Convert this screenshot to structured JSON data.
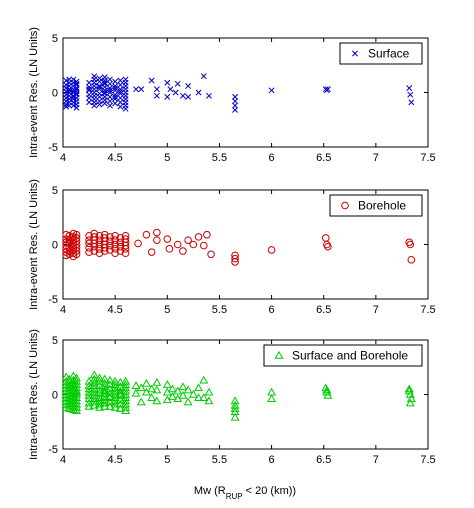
{
  "figure_xlabel": {
    "main": "Mw (R",
    "sub": "RUP",
    "rest": " < 20 (km))"
  },
  "chart_data": [
    {
      "type": "scatter",
      "legend": "Surface",
      "legend_position": "top-right",
      "ylabel": "Intra-event Res. (LN Units)",
      "marker": "x",
      "color": "#0000cc",
      "xlim": [
        4,
        7.5
      ],
      "ylim": [
        -5,
        5
      ],
      "xticks": [
        "4",
        "4.5",
        "5",
        "5.5",
        "6",
        "6.5",
        "7",
        "7.5"
      ],
      "yticks": [
        "5",
        "0",
        "-5"
      ],
      "x": [
        4.03,
        4.03,
        4.03,
        4.03,
        4.03,
        4.03,
        4.03,
        4.03,
        4.03,
        4.06,
        4.06,
        4.06,
        4.06,
        4.06,
        4.06,
        4.06,
        4.06,
        4.06,
        4.06,
        4.1,
        4.1,
        4.1,
        4.1,
        4.1,
        4.1,
        4.1,
        4.1,
        4.1,
        4.1,
        4.1,
        4.13,
        4.13,
        4.13,
        4.13,
        4.13,
        4.13,
        4.13,
        4.13,
        4.13,
        4.13,
        4.13,
        4.13,
        4.25,
        4.25,
        4.25,
        4.25,
        4.25,
        4.25,
        4.25,
        4.3,
        4.3,
        4.3,
        4.3,
        4.3,
        4.3,
        4.3,
        4.3,
        4.3,
        4.3,
        4.35,
        4.35,
        4.35,
        4.35,
        4.35,
        4.35,
        4.35,
        4.35,
        4.35,
        4.4,
        4.4,
        4.4,
        4.4,
        4.4,
        4.4,
        4.4,
        4.4,
        4.4,
        4.4,
        4.4,
        4.45,
        4.45,
        4.45,
        4.45,
        4.45,
        4.45,
        4.45,
        4.45,
        4.5,
        4.5,
        4.5,
        4.5,
        4.5,
        4.5,
        4.5,
        4.5,
        4.55,
        4.55,
        4.55,
        4.55,
        4.55,
        4.55,
        4.55,
        4.55,
        4.6,
        4.6,
        4.6,
        4.6,
        4.6,
        4.6,
        4.6,
        4.6,
        4.6,
        4.6,
        4.7,
        4.75,
        4.85,
        4.9,
        4.9,
        5.0,
        5.0,
        5.03,
        5.08,
        5.1,
        5.15,
        5.2,
        5.2,
        5.3,
        5.35,
        5.4,
        5.65,
        5.65,
        5.65,
        5.65,
        6.0,
        6.52,
        6.53,
        6.54,
        7.32,
        7.33,
        7.34
      ],
      "y": [
        1.1,
        0.7,
        0.4,
        0.1,
        -0.2,
        -0.5,
        -0.8,
        -1.1,
        -1.3,
        0.9,
        0.6,
        0.3,
        0.0,
        -0.3,
        -0.6,
        -0.9,
        1.2,
        -1.2,
        0.2,
        1.2,
        0.9,
        0.6,
        0.3,
        0.0,
        -0.3,
        -0.6,
        -0.9,
        -1.2,
        0.1,
        -0.4,
        1.0,
        0.7,
        0.4,
        0.1,
        -0.2,
        -0.5,
        -0.8,
        -1.1,
        -1.4,
        0.8,
        -0.1,
        0.3,
        0.9,
        0.5,
        0.2,
        -0.2,
        -0.5,
        -0.9,
        0.3,
        1.5,
        1.2,
        0.9,
        0.6,
        0.3,
        0.0,
        -0.3,
        -0.6,
        -0.9,
        -1.2,
        1.3,
        1.0,
        0.6,
        0.3,
        -0.1,
        -0.4,
        -0.8,
        -1.1,
        0.5,
        1.4,
        1.1,
        0.8,
        0.5,
        0.2,
        -0.1,
        -0.4,
        -0.7,
        -1.0,
        0.0,
        0.9,
        1.2,
        0.8,
        0.4,
        0.0,
        -0.4,
        -0.8,
        -1.2,
        0.2,
        1.0,
        0.6,
        0.2,
        -0.2,
        -0.6,
        -1.0,
        0.4,
        -0.4,
        1.1,
        0.7,
        0.3,
        -0.1,
        -0.5,
        -0.9,
        -1.3,
        0.1,
        1.2,
        0.9,
        0.6,
        0.3,
        0.0,
        -0.3,
        -0.6,
        -0.9,
        -1.2,
        -1.5,
        0.3,
        0.3,
        1.1,
        0.3,
        -0.3,
        0.9,
        -0.4,
        0.3,
        0.0,
        0.8,
        -0.3,
        0.6,
        -0.4,
        0.0,
        1.5,
        -0.3,
        -0.4,
        -0.8,
        -1.2,
        -1.6,
        0.2,
        0.3,
        0.2,
        0.3,
        0.4,
        -0.2,
        -0.9
      ]
    },
    {
      "type": "scatter",
      "legend": "Borehole",
      "legend_position": "top-right",
      "ylabel": "Intra-event Res. (LN Units)",
      "marker": "circle",
      "color": "#cc0000",
      "xlim": [
        4,
        7.5
      ],
      "ylim": [
        -5,
        5
      ],
      "xticks": [
        "4",
        "4.5",
        "5",
        "5.5",
        "6",
        "6.5",
        "7",
        "7.5"
      ],
      "yticks": [
        "5",
        "0",
        "-5"
      ],
      "x": [
        4.03,
        4.03,
        4.03,
        4.03,
        4.03,
        4.03,
        4.03,
        4.06,
        4.06,
        4.06,
        4.06,
        4.06,
        4.06,
        4.06,
        4.1,
        4.1,
        4.1,
        4.1,
        4.1,
        4.1,
        4.1,
        4.1,
        4.13,
        4.13,
        4.13,
        4.13,
        4.13,
        4.13,
        4.13,
        4.25,
        4.25,
        4.25,
        4.25,
        4.25,
        4.3,
        4.3,
        4.3,
        4.3,
        4.3,
        4.3,
        4.35,
        4.35,
        4.35,
        4.35,
        4.35,
        4.4,
        4.4,
        4.4,
        4.4,
        4.4,
        4.4,
        4.45,
        4.45,
        4.45,
        4.45,
        4.5,
        4.5,
        4.5,
        4.5,
        4.5,
        4.55,
        4.55,
        4.55,
        4.55,
        4.6,
        4.6,
        4.6,
        4.6,
        4.6,
        4.6,
        4.72,
        4.8,
        4.85,
        4.9,
        4.9,
        5.0,
        5.02,
        5.1,
        5.15,
        5.2,
        5.25,
        5.3,
        5.35,
        5.38,
        5.42,
        5.65,
        5.65,
        5.65,
        6.0,
        6.52,
        6.53,
        6.54,
        7.32,
        7.33,
        7.34
      ],
      "y": [
        0.9,
        0.5,
        0.2,
        -0.1,
        -0.4,
        -0.7,
        -1.0,
        0.8,
        0.4,
        0.1,
        -0.3,
        -0.6,
        -0.9,
        0.2,
        1.0,
        0.7,
        0.4,
        0.1,
        -0.2,
        -0.5,
        -0.8,
        -1.1,
        0.9,
        0.6,
        0.3,
        0.0,
        -0.3,
        -0.6,
        -0.9,
        0.8,
        0.4,
        0.1,
        -0.3,
        -0.7,
        1.0,
        0.7,
        0.4,
        0.1,
        -0.2,
        -0.6,
        0.8,
        0.4,
        0.0,
        -0.4,
        -0.8,
        0.9,
        0.6,
        0.3,
        0.0,
        -0.3,
        -0.6,
        0.7,
        0.3,
        -0.1,
        -0.5,
        0.8,
        0.4,
        0.0,
        -0.4,
        -0.8,
        0.6,
        0.2,
        -0.2,
        -0.6,
        0.8,
        0.5,
        0.2,
        -0.1,
        -0.4,
        -0.8,
        0.1,
        0.9,
        -0.7,
        1.1,
        0.4,
        0.5,
        -0.4,
        0.0,
        -0.6,
        0.4,
        0.0,
        0.7,
        -0.1,
        0.9,
        -0.9,
        -1.0,
        -1.3,
        -1.6,
        -0.5,
        0.6,
        0.0,
        -0.2,
        0.2,
        0.0,
        -1.4
      ]
    },
    {
      "type": "scatter",
      "legend": "Surface and Borehole",
      "legend_position": "top-right",
      "ylabel": "Intra-event Res. (LN Units)",
      "marker": "triangle",
      "color": "#00cc00",
      "xlim": [
        4,
        7.5
      ],
      "ylim": [
        -5,
        5
      ],
      "xticks": [
        "4",
        "4.5",
        "5",
        "5.5",
        "6",
        "6.5",
        "7",
        "7.5"
      ],
      "yticks": [
        "5",
        "0",
        "-5"
      ],
      "x": [
        4.03,
        4.03,
        4.03,
        4.03,
        4.03,
        4.03,
        4.03,
        4.03,
        4.03,
        4.03,
        4.06,
        4.06,
        4.06,
        4.06,
        4.06,
        4.06,
        4.06,
        4.06,
        4.06,
        4.06,
        4.1,
        4.1,
        4.1,
        4.1,
        4.1,
        4.1,
        4.1,
        4.1,
        4.1,
        4.1,
        4.1,
        4.13,
        4.13,
        4.13,
        4.13,
        4.13,
        4.13,
        4.13,
        4.13,
        4.13,
        4.13,
        4.13,
        4.13,
        4.25,
        4.25,
        4.25,
        4.25,
        4.25,
        4.25,
        4.25,
        4.25,
        4.3,
        4.3,
        4.3,
        4.3,
        4.3,
        4.3,
        4.3,
        4.3,
        4.3,
        4.3,
        4.35,
        4.35,
        4.35,
        4.35,
        4.35,
        4.35,
        4.35,
        4.35,
        4.35,
        4.4,
        4.4,
        4.4,
        4.4,
        4.4,
        4.4,
        4.4,
        4.4,
        4.4,
        4.4,
        4.45,
        4.45,
        4.45,
        4.45,
        4.45,
        4.45,
        4.45,
        4.45,
        4.5,
        4.5,
        4.5,
        4.5,
        4.5,
        4.5,
        4.5,
        4.5,
        4.5,
        4.55,
        4.55,
        4.55,
        4.55,
        4.55,
        4.55,
        4.55,
        4.55,
        4.6,
        4.6,
        4.6,
        4.6,
        4.6,
        4.6,
        4.6,
        4.6,
        4.6,
        4.6,
        4.7,
        4.7,
        4.75,
        4.75,
        4.8,
        4.8,
        4.85,
        4.85,
        4.9,
        4.9,
        4.9,
        5.0,
        5.0,
        5.0,
        5.05,
        5.05,
        5.1,
        5.1,
        5.15,
        5.15,
        5.2,
        5.2,
        5.25,
        5.3,
        5.3,
        5.35,
        5.35,
        5.4,
        5.4,
        5.65,
        5.65,
        5.65,
        5.65,
        5.65,
        6.0,
        6.0,
        6.52,
        6.53,
        6.54,
        6.53,
        7.32,
        7.33,
        7.34,
        7.33,
        7.32
      ],
      "y": [
        1.6,
        1.2,
        0.9,
        0.6,
        0.3,
        0.0,
        -0.3,
        -0.6,
        -0.9,
        -1.2,
        1.4,
        1.1,
        0.8,
        0.5,
        0.2,
        -0.1,
        -0.4,
        -0.7,
        -1.0,
        -1.3,
        1.7,
        1.3,
        1.0,
        0.7,
        0.4,
        0.1,
        -0.2,
        -0.5,
        -0.8,
        -1.1,
        -1.4,
        1.5,
        1.2,
        0.9,
        0.6,
        0.3,
        0.0,
        -0.3,
        -0.6,
        -0.9,
        -1.2,
        -1.5,
        0.2,
        1.2,
        0.8,
        0.5,
        0.2,
        -0.1,
        -0.4,
        -0.8,
        -1.1,
        1.8,
        1.4,
        1.1,
        0.8,
        0.5,
        0.2,
        -0.1,
        -0.4,
        -0.7,
        -1.0,
        1.5,
        1.2,
        0.8,
        0.4,
        0.1,
        -0.3,
        -0.6,
        -0.9,
        -1.2,
        1.4,
        1.0,
        0.7,
        0.4,
        0.1,
        -0.2,
        -0.5,
        -0.8,
        -1.1,
        0.3,
        1.3,
        0.9,
        0.5,
        0.1,
        -0.3,
        -0.7,
        -1.1,
        -0.2,
        1.2,
        0.9,
        0.6,
        0.3,
        0.0,
        -0.3,
        -0.6,
        -0.9,
        -1.2,
        1.1,
        0.7,
        0.3,
        -0.1,
        -0.5,
        -0.9,
        -1.3,
        0.1,
        1.2,
        0.9,
        0.6,
        0.3,
        0.0,
        -0.3,
        -0.6,
        -0.9,
        -1.2,
        -1.5,
        0.8,
        0.1,
        0.6,
        -0.7,
        1.0,
        0.2,
        0.5,
        -0.3,
        1.1,
        0.4,
        -0.6,
        0.9,
        0.2,
        -0.5,
        0.5,
        -0.2,
        0.3,
        -0.4,
        0.7,
        -0.1,
        0.4,
        -0.7,
        0.0,
        0.6,
        -0.3,
        1.3,
        -0.3,
        0.2,
        -0.6,
        -0.6,
        -1.0,
        -1.3,
        -1.6,
        -2.1,
        0.2,
        -0.4,
        0.6,
        0.2,
        -0.1,
        0.4,
        0.5,
        0.0,
        -0.4,
        -0.8,
        0.3
      ]
    }
  ]
}
